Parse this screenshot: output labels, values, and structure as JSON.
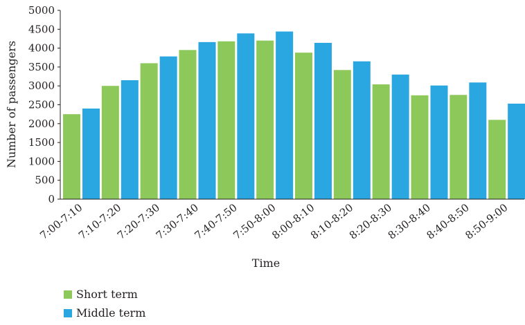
{
  "chart_data": {
    "type": "bar",
    "title": "",
    "xlabel": "Time",
    "ylabel": "Number of passengers",
    "ylim": [
      0,
      5000
    ],
    "yticks": [
      0,
      500,
      1000,
      1500,
      2000,
      2500,
      3000,
      3500,
      4000,
      4500,
      5000
    ],
    "categories": [
      "7:00-7:10",
      "7:10-7:20",
      "7:20-7:30",
      "7:30-7:40",
      "7:40-7:50",
      "7:50-8:00",
      "8:00-8:10",
      "8:10-8:20",
      "8:20-8:30",
      "8:30-8:40",
      "8:40-8:50",
      "8:50-9:00"
    ],
    "series": [
      {
        "name": "Short term",
        "color": "#8dc85a",
        "values": [
          2250,
          3000,
          3600,
          3950,
          4180,
          4200,
          3880,
          3420,
          3040,
          2750,
          2760,
          2100
        ]
      },
      {
        "name": "Middle term",
        "color": "#2aa6e0",
        "values": [
          2400,
          3150,
          3780,
          4160,
          4390,
          4440,
          4140,
          3650,
          3300,
          3010,
          3090,
          2530
        ]
      }
    ],
    "grid": false,
    "legend_position": "bottom-left"
  }
}
